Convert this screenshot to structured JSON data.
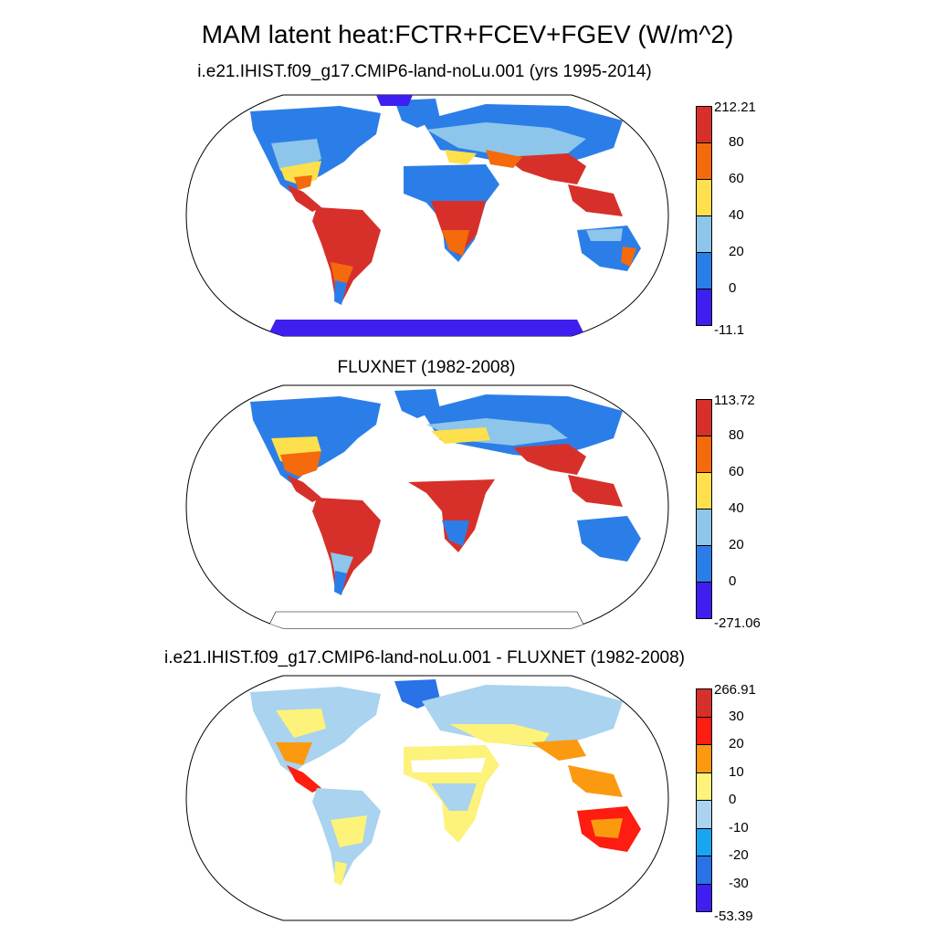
{
  "title": "MAM latent heat:FCTR+FCEV+FGEV (W/m^2)",
  "panels": [
    {
      "subtitle": "i.e21.IHIST.f09_g17.CMIP6-land-noLu.001 (yrs 1995-2014)",
      "colorbar": {
        "labels": [
          "212.21",
          "80",
          "60",
          "40",
          "20",
          "0",
          "-11.1"
        ],
        "colors": [
          "#d7302a",
          "#f46a0c",
          "#fde04b",
          "#8dc6ea",
          "#2b7ee8",
          "#3f1ef0"
        ]
      },
      "antarctica_color": "#3f1ef0"
    },
    {
      "subtitle": "FLUXNET (1982-2008)",
      "colorbar": {
        "labels": [
          "113.72",
          "80",
          "60",
          "40",
          "20",
          "0",
          "-271.06"
        ],
        "colors": [
          "#d7302a",
          "#f46a0c",
          "#fde04b",
          "#8dc6ea",
          "#2b7ee8",
          "#3f1ef0"
        ]
      },
      "antarctica_color": "#ffffff"
    },
    {
      "subtitle": "i.e21.IHIST.f09_g17.CMIP6-land-noLu.001 - FLUXNET (1982-2008)",
      "colorbar": {
        "labels": [
          "266.91",
          "30",
          "20",
          "10",
          "0",
          "-10",
          "-20",
          "-30",
          "-53.39"
        ],
        "colors": [
          "#d7302a",
          "#ff1c10",
          "#fb9a10",
          "#fdf27a",
          "#a9d3ee",
          "#18a6f2",
          "#2972e8",
          "#3f1ef0"
        ]
      },
      "antarctica_color": "#ffffff"
    }
  ]
}
